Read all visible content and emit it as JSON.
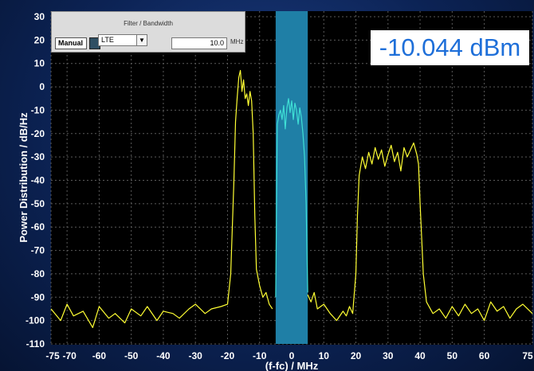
{
  "filter_panel": {
    "title": "Filter / Bandwidth",
    "manual_label": "Manual",
    "mode_value": "LTE",
    "bandwidth_value": "10.0",
    "bandwidth_unit": "MHz"
  },
  "power_readout": "-10.044 dBm",
  "colors": {
    "trace": "#ffff33",
    "channel_trace": "#3fe0d6",
    "channel_band": "#1f7fa6",
    "plot_bg": "#000000"
  },
  "chart_data": {
    "type": "line",
    "title": "",
    "xlabel": "(f-fc) / MHz",
    "ylabel": "Power Distribution / dB/Hz",
    "xlim": [
      -75,
      75
    ],
    "ylim": [
      -110,
      30
    ],
    "grid": true,
    "x_ticks": [
      "-75",
      "-70",
      "-60",
      "-50",
      "-40",
      "-30",
      "-20",
      "-10",
      "0",
      "10",
      "20",
      "30",
      "40",
      "50",
      "60",
      "75"
    ],
    "x_tick_values": [
      -75,
      -70,
      -60,
      -50,
      -40,
      -30,
      -20,
      -10,
      0,
      10,
      20,
      30,
      40,
      50,
      60,
      75
    ],
    "y_ticks": [
      "30",
      "20",
      "10",
      "0",
      "-10",
      "-20",
      "-30",
      "-40",
      "-50",
      "-60",
      "-70",
      "-80",
      "-90",
      "-100",
      "-110"
    ],
    "y_tick_values": [
      30,
      20,
      10,
      0,
      -10,
      -20,
      -30,
      -40,
      -50,
      -60,
      -70,
      -80,
      -90,
      -100,
      -110
    ],
    "highlight_band": [
      -5,
      5
    ],
    "series": [
      {
        "color": "#ffff33",
        "x": [
          -75,
          -72,
          -70,
          -68,
          -65,
          -62,
          -60,
          -57,
          -55,
          -52,
          -50,
          -47,
          -45,
          -42,
          -40,
          -37,
          -35,
          -32,
          -30,
          -27,
          -25,
          -22,
          -20,
          -19,
          -18,
          -17.5,
          -17,
          -16.5,
          -16,
          -15.5,
          -15,
          -14.5,
          -14,
          -13.5,
          -13,
          -12.5,
          -12,
          -11.5,
          -11,
          -10,
          -9,
          -8,
          -7,
          -6
        ],
        "y": [
          -95,
          -100,
          -93,
          -98,
          -96,
          -103,
          -94,
          -99,
          -97,
          -101,
          -95,
          -98,
          -94,
          -100,
          -96,
          -97,
          -99,
          -95,
          -93,
          -97,
          -95,
          -94,
          -93,
          -80,
          -40,
          -15,
          -5,
          4,
          7,
          -2,
          3,
          -5,
          -3,
          -8,
          -2,
          -6,
          -20,
          -55,
          -78,
          -85,
          -90,
          -88,
          -93,
          -95
        ]
      },
      {
        "color": "#3fe0d6",
        "x": [
          -5,
          -4.5,
          -4,
          -3.5,
          -3,
          -2.5,
          -2,
          -1.5,
          -1,
          -0.5,
          0,
          0.5,
          1,
          1.5,
          2,
          2.5,
          3,
          3.5,
          4,
          4.5,
          5
        ],
        "y": [
          -90,
          -16,
          -12,
          -10,
          -14,
          -8,
          -18,
          -9,
          -5,
          -11,
          -6,
          -14,
          -7,
          -10,
          -16,
          -9,
          -13,
          -20,
          -30,
          -50,
          -88
        ]
      },
      {
        "color": "#ffff33",
        "x": [
          5,
          6,
          7,
          8,
          10,
          12,
          14,
          16,
          17,
          18,
          19,
          20,
          20.5,
          21,
          22,
          23,
          24,
          25,
          26,
          27,
          28,
          29,
          30,
          31,
          32,
          33,
          34,
          35,
          36,
          37,
          38,
          39,
          39.5,
          40,
          41,
          42,
          44,
          46,
          48,
          50,
          52,
          54,
          56,
          58,
          60,
          62,
          64,
          66,
          68,
          70,
          72,
          75
        ],
        "y": [
          -89,
          -92,
          -88,
          -95,
          -93,
          -97,
          -100,
          -96,
          -98,
          -94,
          -97,
          -80,
          -55,
          -38,
          -30,
          -35,
          -28,
          -33,
          -26,
          -31,
          -27,
          -34,
          -29,
          -25,
          -32,
          -28,
          -36,
          -26,
          -30,
          -27,
          -24,
          -29,
          -33,
          -50,
          -80,
          -92,
          -97,
          -95,
          -99,
          -94,
          -98,
          -93,
          -97,
          -95,
          -100,
          -92,
          -96,
          -94,
          -99,
          -95,
          -93,
          -97
        ]
      }
    ]
  }
}
